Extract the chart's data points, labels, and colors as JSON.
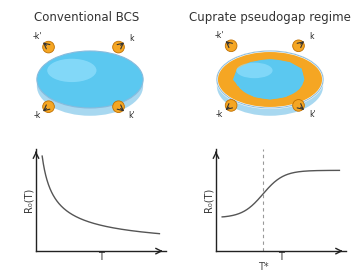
{
  "title_left": "Conventional BCS",
  "title_right": "Cuprate pseudogap regime",
  "ylabel_left": "R₀(T)",
  "ylabel_right": "R₀(T)",
  "xlabel_left": "T",
  "xlabel_right": "T",
  "tstar_label": "T*",
  "bg_color": "#ffffff",
  "ellipse_blue": "#5bc8f0",
  "ellipse_blue_dark": "#3aaad0",
  "ellipse_orange": "#f5a623",
  "ellipse_shadow": "#b0d8f0",
  "electron_color": "#f5a623",
  "electron_outline": "#c07000",
  "curve_color": "#555555",
  "axis_color": "#222222",
  "title_fontsize": 8.5,
  "label_fontsize": 7,
  "tick_fontsize": 7
}
